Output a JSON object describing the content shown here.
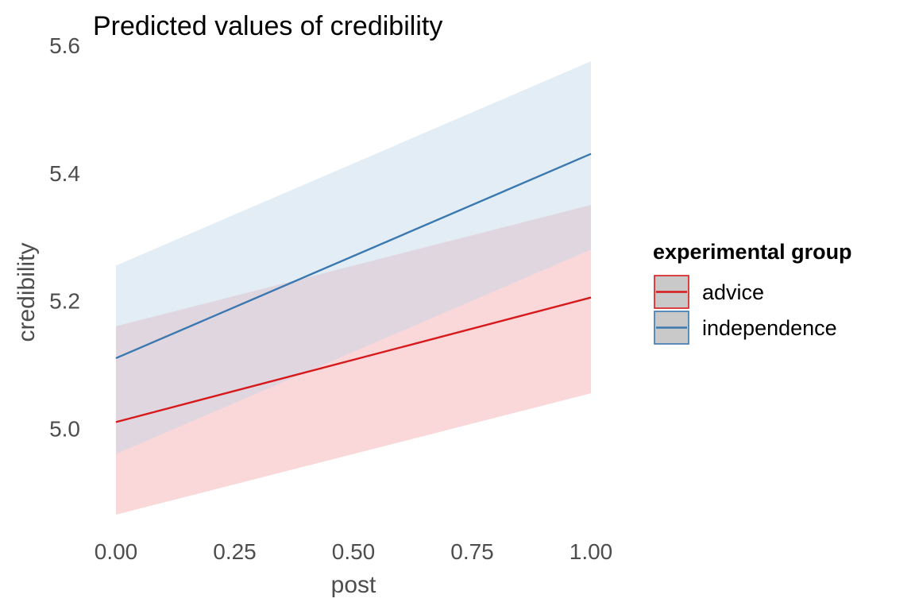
{
  "chart_data": {
    "type": "line",
    "title": "Predicted values of credibility",
    "xlabel": "post",
    "ylabel": "credibility",
    "xlim": [
      0,
      1
    ],
    "ylim": [
      4.85,
      5.6
    ],
    "xticks": [
      0,
      0.25,
      0.5,
      0.75,
      1
    ],
    "xtick_labels": [
      "0.00",
      "0.25",
      "0.50",
      "0.75",
      "1.00"
    ],
    "yticks": [
      5.0,
      5.2,
      5.4,
      5.6
    ],
    "ytick_labels": [
      "5.0",
      "5.2",
      "5.4",
      "5.6"
    ],
    "grid": false,
    "legend": {
      "title": "experimental group",
      "position": "right"
    },
    "series": [
      {
        "name": "advice",
        "color": "#d7191c",
        "ribbon_color": "#f4a3a8",
        "x": [
          0,
          1
        ],
        "y": [
          5.01,
          5.205
        ],
        "ci_low": [
          4.865,
          5.055
        ],
        "ci_high": [
          5.16,
          5.35
        ]
      },
      {
        "name": "independence",
        "color": "#3b78b0",
        "ribbon_color": "#bcd3e8",
        "x": [
          0,
          1
        ],
        "y": [
          5.11,
          5.43
        ],
        "ci_low": [
          4.96,
          5.28
        ],
        "ci_high": [
          5.255,
          5.575
        ]
      }
    ]
  }
}
